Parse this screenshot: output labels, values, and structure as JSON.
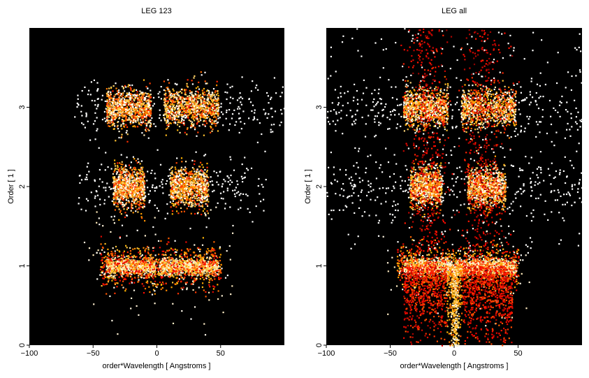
{
  "chart_data": [
    {
      "type": "heatmap",
      "title": "LEG 123",
      "xlabel": "order*Wavelength [ Angstroms ]",
      "ylabel": "Order [ 1 ]",
      "xlim": [
        -100,
        100
      ],
      "ylim": [
        0,
        4
      ],
      "xticks": [
        -100,
        -50,
        0,
        50
      ],
      "yticks": [
        0,
        1,
        2,
        3
      ],
      "colormap": "black-red-yellow-white",
      "bands": [
        {
          "order": 1,
          "x_range": [
            -45,
            50
          ],
          "core_x": [
            -40,
            48
          ],
          "notch_x": 0,
          "intensity": "high"
        },
        {
          "order": 2,
          "lobes": [
            [
              -35,
              -10
            ],
            [
              10,
              40
            ]
          ],
          "scatter_x": [
            -62,
            85
          ],
          "intensity": "medium"
        },
        {
          "order": 3,
          "lobes": [
            [
              -40,
              -5
            ],
            [
              5,
              48
            ]
          ],
          "scatter_x": [
            -65,
            100
          ],
          "intensity": "medium"
        }
      ]
    },
    {
      "type": "heatmap",
      "title": "LEG all",
      "xlabel": "order*Wavelength [ Angstroms ]",
      "ylabel": "Order [ 1 ]",
      "xlim": [
        -100,
        100
      ],
      "ylim": [
        0,
        4
      ],
      "xticks": [
        -100,
        -50,
        0,
        50
      ],
      "yticks": [
        0,
        1,
        2,
        3
      ],
      "colormap": "black-red-yellow-white",
      "bands": [
        {
          "order": 1,
          "x_range": [
            -45,
            50
          ],
          "core_x": [
            -40,
            48
          ],
          "notch_x": 0,
          "intensity": "high",
          "tail_to_zero": true
        },
        {
          "order": 2,
          "lobes": [
            [
              -35,
              -10
            ],
            [
              10,
              40
            ]
          ],
          "scatter_x": [
            -100,
            100
          ],
          "intensity": "medium"
        },
        {
          "order": 3,
          "lobes": [
            [
              -40,
              -5
            ],
            [
              5,
              48
            ]
          ],
          "scatter_x": [
            -100,
            100
          ],
          "intensity": "medium"
        }
      ]
    }
  ]
}
